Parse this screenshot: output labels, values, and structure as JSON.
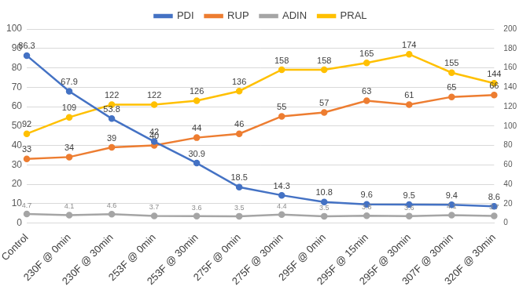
{
  "chart_data": {
    "type": "line",
    "categories": [
      "Control",
      "230F @ 0min",
      "230F @ 30min",
      "253F @ 0min",
      "253F @ 30min",
      "275F @ 0min",
      "275F @ 30min",
      "295F @ 0min",
      "295F @ 15min",
      "295F @ 30min",
      "307F @ 30min",
      "320F @ 30min"
    ],
    "series": [
      {
        "name": "PDI",
        "color": "#4472c4",
        "marker": "circle",
        "values": [
          86.3,
          67.9,
          53.8,
          42,
          30.9,
          18.5,
          14.3,
          10.8,
          9.6,
          9.5,
          9.4,
          8.6
        ]
      },
      {
        "name": "RUP",
        "color": "#ed7d31",
        "marker": "circle",
        "values": [
          33,
          34,
          39,
          40,
          44,
          46,
          55,
          57,
          63,
          61,
          65,
          66
        ]
      },
      {
        "name": "ADIN",
        "color": "#a5a5a5",
        "marker": "circle",
        "values": [
          4.7,
          4.1,
          4.6,
          3.7,
          3.6,
          3.5,
          4.4,
          3.5,
          3.8,
          3.6,
          4.1,
          3.7
        ]
      },
      {
        "name": "PRAL",
        "color": "#ffc000",
        "marker": "circle",
        "axis": "y2",
        "values": [
          92,
          109,
          122,
          122,
          126,
          136,
          158,
          158,
          165,
          174,
          155,
          144
        ]
      }
    ],
    "ylim": [
      0,
      100
    ],
    "yticks": [
      0,
      10,
      20,
      30,
      40,
      50,
      60,
      70,
      80,
      90,
      100
    ],
    "y2lim": [
      0,
      200
    ],
    "y2ticks": [
      0,
      20,
      40,
      60,
      80,
      100,
      120,
      140,
      160,
      180,
      200
    ],
    "grid": true,
    "legend": "top",
    "data_labels": true
  }
}
